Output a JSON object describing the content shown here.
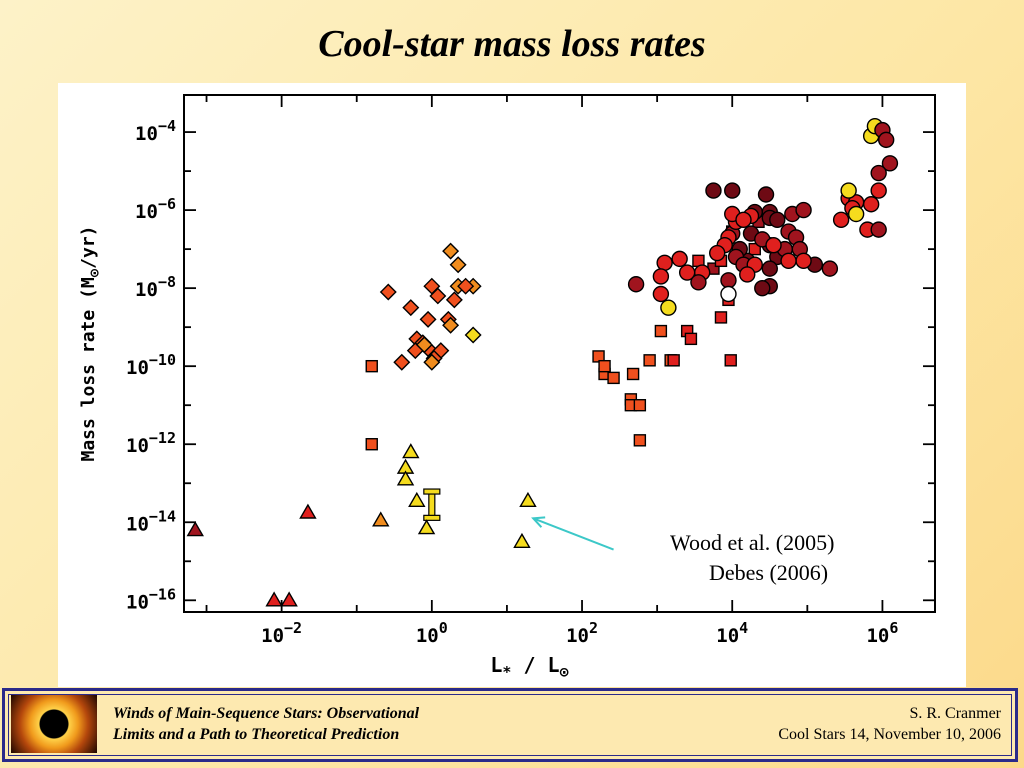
{
  "slide": {
    "title": "Cool-star mass loss rates"
  },
  "footer": {
    "left_line1": "Winds of Main-Sequence Stars:  Observational",
    "left_line2": "Limits and a Path to Theoretical Prediction",
    "right_line1": "S. R. Cranmer",
    "right_line2": "Cool Stars 14,  November 10, 2006"
  },
  "chart_data": {
    "type": "scatter",
    "x_scale": "log",
    "y_scale": "log",
    "xlabel_main": "L",
    "xlabel_sub": "*",
    "xlabel_rest": " / L",
    "ylabel_main": "Mass loss rate (M",
    "ylabel_rest": "/yr)",
    "xlim_log10": [
      -3.3,
      6.7
    ],
    "ylim_log10": [
      -16.3,
      -3.05
    ],
    "x_ticks": [
      {
        "log10": -2,
        "base": "10",
        "exp": "−2"
      },
      {
        "log10": 0,
        "base": "10",
        "exp": "0"
      },
      {
        "log10": 2,
        "base": "10",
        "exp": "2"
      },
      {
        "log10": 4,
        "base": "10",
        "exp": "4"
      },
      {
        "log10": 6,
        "base": "10",
        "exp": "6"
      }
    ],
    "y_ticks": [
      {
        "log10": -4,
        "base": "10",
        "exp": "−4"
      },
      {
        "log10": -6,
        "base": "10",
        "exp": "−6"
      },
      {
        "log10": -8,
        "base": "10",
        "exp": "−8"
      },
      {
        "log10": -10,
        "base": "10",
        "exp": "−10"
      },
      {
        "log10": -12,
        "base": "10",
        "exp": "−12"
      },
      {
        "log10": -14,
        "base": "10",
        "exp": "−14"
      },
      {
        "log10": -16,
        "base": "10",
        "exp": "−16"
      }
    ],
    "annotation": {
      "line1": "Wood et al. (2005)",
      "line2": "Debes (2006)",
      "arrow_color": "#3cc8c8",
      "arrow_tail_log10": [
        2.42,
        -14.7
      ],
      "arrow_head_log10": [
        1.35,
        -13.9
      ]
    },
    "colors": {
      "yellow": "#f5dc1e",
      "orange": "#f08c1e",
      "redorange": "#f0501e",
      "red": "#e0201e",
      "darkred": "#a0141e",
      "maroon": "#6e0a14",
      "white": "#ffffff"
    },
    "error_bar": {
      "log10_L": 0.0,
      "log10_Mdot_low": -13.9,
      "log10_Mdot_high": -13.2,
      "color": "#f5dc1e"
    },
    "series": [
      {
        "marker": "triangle",
        "points": [
          {
            "x": -3.15,
            "y": -14.2,
            "c": "darkred"
          },
          {
            "x": -2.1,
            "y": -16.0,
            "c": "red"
          },
          {
            "x": -1.9,
            "y": -16.0,
            "c": "red"
          },
          {
            "x": -1.65,
            "y": -13.75,
            "c": "red"
          },
          {
            "x": -0.68,
            "y": -13.95,
            "c": "orange"
          },
          {
            "x": -0.28,
            "y": -12.2,
            "c": "yellow"
          },
          {
            "x": -0.35,
            "y": -12.6,
            "c": "yellow"
          },
          {
            "x": -0.35,
            "y": -12.9,
            "c": "yellow"
          },
          {
            "x": -0.2,
            "y": -13.45,
            "c": "yellow"
          },
          {
            "x": -0.07,
            "y": -14.15,
            "c": "yellow"
          },
          {
            "x": 1.2,
            "y": -14.5,
            "c": "yellow"
          },
          {
            "x": 1.28,
            "y": -13.45,
            "c": "yellow"
          }
        ]
      },
      {
        "marker": "diamond",
        "points": [
          {
            "x": 0.25,
            "y": -7.05,
            "c": "orange"
          },
          {
            "x": 0.35,
            "y": -7.4,
            "c": "orange"
          },
          {
            "x": 0.35,
            "y": -7.95,
            "c": "orange"
          },
          {
            "x": 0.55,
            "y": -7.95,
            "c": "orange"
          },
          {
            "x": 0.55,
            "y": -9.2,
            "c": "yellow"
          },
          {
            "x": 0.0,
            "y": -7.95,
            "c": "redorange"
          },
          {
            "x": 0.45,
            "y": -7.95,
            "c": "redorange"
          },
          {
            "x": -0.58,
            "y": -8.1,
            "c": "redorange"
          },
          {
            "x": -0.28,
            "y": -8.5,
            "c": "redorange"
          },
          {
            "x": 0.08,
            "y": -8.2,
            "c": "redorange"
          },
          {
            "x": 0.3,
            "y": -8.3,
            "c": "redorange"
          },
          {
            "x": -0.05,
            "y": -8.8,
            "c": "redorange"
          },
          {
            "x": 0.22,
            "y": -8.8,
            "c": "redorange"
          },
          {
            "x": -0.2,
            "y": -9.3,
            "c": "redorange"
          },
          {
            "x": -0.12,
            "y": -9.4,
            "c": "redorange"
          },
          {
            "x": -0.05,
            "y": -9.55,
            "c": "redorange"
          },
          {
            "x": 0.12,
            "y": -9.6,
            "c": "redorange"
          },
          {
            "x": -0.22,
            "y": -9.6,
            "c": "redorange"
          },
          {
            "x": 0.03,
            "y": -9.8,
            "c": "redorange"
          },
          {
            "x": -0.4,
            "y": -9.9,
            "c": "redorange"
          },
          {
            "x": 0.25,
            "y": -8.95,
            "c": "orange"
          },
          {
            "x": 0.0,
            "y": -9.9,
            "c": "orange"
          },
          {
            "x": -0.1,
            "y": -9.45,
            "c": "orange"
          }
        ]
      },
      {
        "marker": "square",
        "points": [
          {
            "x": -0.8,
            "y": -10.0,
            "c": "redorange"
          },
          {
            "x": -0.8,
            "y": -12.0,
            "c": "redorange"
          },
          {
            "x": 2.22,
            "y": -9.75,
            "c": "redorange"
          },
          {
            "x": 2.3,
            "y": -10.2,
            "c": "redorange"
          },
          {
            "x": 2.3,
            "y": -10.0,
            "c": "redorange"
          },
          {
            "x": 2.42,
            "y": -10.3,
            "c": "redorange"
          },
          {
            "x": 2.65,
            "y": -10.85,
            "c": "redorange"
          },
          {
            "x": 2.65,
            "y": -11.0,
            "c": "redorange"
          },
          {
            "x": 2.68,
            "y": -10.2,
            "c": "redorange"
          },
          {
            "x": 2.77,
            "y": -11.0,
            "c": "redorange"
          },
          {
            "x": 2.77,
            "y": -11.9,
            "c": "redorange"
          },
          {
            "x": 2.9,
            "y": -9.85,
            "c": "redorange"
          },
          {
            "x": 3.05,
            "y": -9.1,
            "c": "redorange"
          },
          {
            "x": 3.18,
            "y": -9.85,
            "c": "redorange"
          },
          {
            "x": 3.22,
            "y": -9.85,
            "c": "red"
          },
          {
            "x": 3.4,
            "y": -9.1,
            "c": "red"
          },
          {
            "x": 3.45,
            "y": -9.3,
            "c": "red"
          },
          {
            "x": 3.85,
            "y": -8.75,
            "c": "red"
          },
          {
            "x": 3.95,
            "y": -8.3,
            "c": "red"
          },
          {
            "x": 3.98,
            "y": -9.85,
            "c": "red"
          },
          {
            "x": 3.75,
            "y": -7.5,
            "c": "darkred"
          },
          {
            "x": 3.85,
            "y": -7.3,
            "c": "red"
          },
          {
            "x": 3.55,
            "y": -7.3,
            "c": "red"
          },
          {
            "x": 4.3,
            "y": -7.0,
            "c": "red"
          },
          {
            "x": 4.0,
            "y": -6.55,
            "c": "red"
          },
          {
            "x": 4.35,
            "y": -6.3,
            "c": "darkred"
          }
        ]
      },
      {
        "marker": "circle",
        "points": [
          {
            "x": 3.75,
            "y": -5.5,
            "c": "maroon"
          },
          {
            "x": 4.0,
            "y": -5.5,
            "c": "maroon"
          },
          {
            "x": 4.45,
            "y": -5.6,
            "c": "maroon"
          },
          {
            "x": 4.5,
            "y": -6.05,
            "c": "maroon"
          },
          {
            "x": 4.5,
            "y": -6.2,
            "c": "maroon"
          },
          {
            "x": 4.3,
            "y": -6.05,
            "c": "maroon"
          },
          {
            "x": 4.0,
            "y": -6.6,
            "c": "darkred"
          },
          {
            "x": 4.25,
            "y": -6.6,
            "c": "maroon"
          },
          {
            "x": 4.5,
            "y": -6.9,
            "c": "maroon"
          },
          {
            "x": 4.6,
            "y": -6.25,
            "c": "maroon"
          },
          {
            "x": 4.6,
            "y": -7.2,
            "c": "maroon"
          },
          {
            "x": 4.5,
            "y": -7.5,
            "c": "maroon"
          },
          {
            "x": 4.5,
            "y": -7.95,
            "c": "maroon"
          },
          {
            "x": 4.2,
            "y": -7.3,
            "c": "maroon"
          },
          {
            "x": 4.1,
            "y": -7.0,
            "c": "maroon"
          },
          {
            "x": 4.05,
            "y": -7.2,
            "c": "darkred"
          },
          {
            "x": 4.15,
            "y": -7.4,
            "c": "darkred"
          },
          {
            "x": 4.4,
            "y": -6.75,
            "c": "darkred"
          },
          {
            "x": 4.7,
            "y": -7.0,
            "c": "darkred"
          },
          {
            "x": 4.75,
            "y": -6.55,
            "c": "darkred"
          },
          {
            "x": 4.8,
            "y": -6.1,
            "c": "darkred"
          },
          {
            "x": 4.85,
            "y": -6.7,
            "c": "darkred"
          },
          {
            "x": 4.9,
            "y": -7.0,
            "c": "darkred"
          },
          {
            "x": 4.95,
            "y": -6.0,
            "c": "darkred"
          },
          {
            "x": 5.1,
            "y": -7.4,
            "c": "maroon"
          },
          {
            "x": 5.3,
            "y": -7.5,
            "c": "darkred"
          },
          {
            "x": 4.95,
            "y": -7.3,
            "c": "red"
          },
          {
            "x": 4.75,
            "y": -7.3,
            "c": "red"
          },
          {
            "x": 4.55,
            "y": -6.9,
            "c": "red"
          },
          {
            "x": 4.3,
            "y": -7.4,
            "c": "red"
          },
          {
            "x": 4.05,
            "y": -6.3,
            "c": "red"
          },
          {
            "x": 3.95,
            "y": -6.7,
            "c": "red"
          },
          {
            "x": 3.9,
            "y": -6.9,
            "c": "red"
          },
          {
            "x": 3.8,
            "y": -7.1,
            "c": "red"
          },
          {
            "x": 4.2,
            "y": -7.65,
            "c": "red"
          },
          {
            "x": 3.6,
            "y": -7.6,
            "c": "red"
          },
          {
            "x": 3.4,
            "y": -7.6,
            "c": "red"
          },
          {
            "x": 3.3,
            "y": -7.25,
            "c": "red"
          },
          {
            "x": 3.1,
            "y": -7.35,
            "c": "red"
          },
          {
            "x": 3.05,
            "y": -7.7,
            "c": "red"
          },
          {
            "x": 3.05,
            "y": -8.15,
            "c": "red"
          },
          {
            "x": 3.15,
            "y": -8.5,
            "c": "yellow"
          },
          {
            "x": 2.72,
            "y": -7.9,
            "c": "darkred"
          },
          {
            "x": 3.55,
            "y": -7.85,
            "c": "darkred"
          },
          {
            "x": 3.95,
            "y": -7.8,
            "c": "darkred"
          },
          {
            "x": 4.4,
            "y": -8.0,
            "c": "maroon"
          },
          {
            "x": 3.95,
            "y": -8.15,
            "c": "white"
          },
          {
            "x": 4.25,
            "y": -6.15,
            "c": "red"
          },
          {
            "x": 4.0,
            "y": -6.1,
            "c": "red"
          },
          {
            "x": 4.15,
            "y": -6.25,
            "c": "red"
          },
          {
            "x": 5.55,
            "y": -5.7,
            "c": "red"
          },
          {
            "x": 5.65,
            "y": -5.8,
            "c": "red"
          },
          {
            "x": 5.85,
            "y": -5.85,
            "c": "red"
          },
          {
            "x": 5.6,
            "y": -5.95,
            "c": "red"
          },
          {
            "x": 5.45,
            "y": -6.25,
            "c": "red"
          },
          {
            "x": 5.95,
            "y": -5.5,
            "c": "red"
          },
          {
            "x": 5.8,
            "y": -6.5,
            "c": "red"
          },
          {
            "x": 5.95,
            "y": -6.5,
            "c": "darkred"
          },
          {
            "x": 5.55,
            "y": -5.5,
            "c": "yellow"
          },
          {
            "x": 5.65,
            "y": -6.1,
            "c": "yellow"
          },
          {
            "x": 5.85,
            "y": -4.1,
            "c": "yellow"
          },
          {
            "x": 5.9,
            "y": -3.85,
            "c": "yellow"
          },
          {
            "x": 6.0,
            "y": -3.95,
            "c": "darkred"
          },
          {
            "x": 6.05,
            "y": -4.2,
            "c": "darkred"
          },
          {
            "x": 6.1,
            "y": -4.8,
            "c": "darkred"
          },
          {
            "x": 5.95,
            "y": -5.05,
            "c": "darkred"
          }
        ]
      }
    ]
  }
}
